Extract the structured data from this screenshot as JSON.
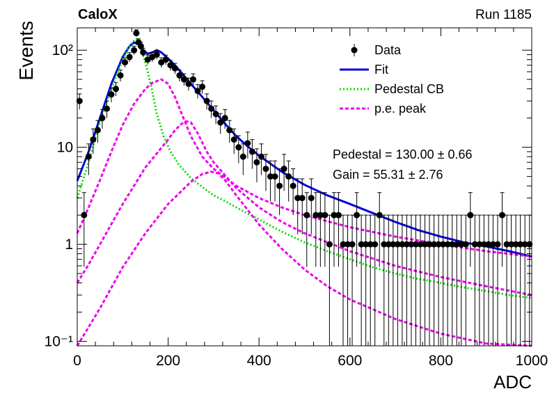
{
  "header": {
    "experiment": "CaloX",
    "run": "Run 1185"
  },
  "fit_results": {
    "pedestal": "Pedestal = 130.00 ± 0.66",
    "gain": "Gain = 55.31 ± 2.76"
  },
  "chart_data": {
    "type": "scatter",
    "title": "",
    "xlabel": "ADC",
    "ylabel": "Events",
    "xlim": [
      0,
      1000
    ],
    "ylim": [
      0.09,
      170
    ],
    "yscale": "log",
    "grid": false,
    "legend_position": "top-right",
    "x_ticks": [
      "0",
      "200",
      "400",
      "600",
      "800",
      "1000"
    ],
    "y_ticks": [
      {
        "value": 0.1,
        "label": "10⁻¹"
      },
      {
        "value": 1,
        "label": "1"
      },
      {
        "value": 10,
        "label": "10"
      },
      {
        "value": 100,
        "label": "10²"
      }
    ],
    "legend": [
      {
        "label": "Data",
        "style": "marker",
        "color": "#000000"
      },
      {
        "label": "Fit",
        "style": "solid",
        "color": "#0000dd"
      },
      {
        "label": "Pedestal CB",
        "style": "dotted",
        "color": "#00dd00"
      },
      {
        "label": "p.e. peak",
        "style": "dashed",
        "color": "#ee00ee"
      }
    ],
    "series": [
      {
        "name": "Data",
        "marker": "circle",
        "color": "#000000",
        "x": [
          5,
          15,
          25,
          35,
          45,
          55,
          65,
          75,
          85,
          95,
          105,
          115,
          125,
          130,
          135,
          140,
          145,
          155,
          165,
          175,
          185,
          195,
          205,
          215,
          225,
          235,
          245,
          255,
          265,
          275,
          285,
          295,
          305,
          315,
          325,
          335,
          345,
          355,
          365,
          375,
          385,
          395,
          405,
          415,
          425,
          435,
          445,
          455,
          465,
          475,
          485,
          495,
          505,
          515,
          525,
          535,
          545,
          555,
          565,
          575,
          585,
          595,
          605,
          615,
          625,
          635,
          645,
          655,
          665,
          675,
          685,
          695,
          705,
          715,
          725,
          735,
          745,
          755,
          765,
          775,
          785,
          795,
          805,
          815,
          825,
          835,
          845,
          855,
          865,
          875,
          885,
          895,
          905,
          915,
          925,
          935,
          945,
          955,
          965,
          975,
          985,
          995
        ],
        "y": [
          30,
          2,
          8,
          12,
          15,
          20,
          25,
          35,
          40,
          55,
          75,
          85,
          100,
          150,
          120,
          110,
          95,
          80,
          85,
          90,
          75,
          80,
          70,
          65,
          55,
          50,
          45,
          50,
          38,
          42,
          30,
          25,
          22,
          18,
          20,
          15,
          12,
          10,
          8,
          11,
          9,
          7,
          8,
          6,
          5,
          5,
          4,
          6,
          5,
          4,
          3,
          3,
          2,
          3,
          2,
          2,
          2,
          1,
          2,
          2,
          1,
          1,
          1,
          2,
          1,
          1,
          1,
          1,
          2,
          1,
          1,
          1,
          1,
          1,
          1,
          1,
          1,
          1,
          1,
          1,
          1,
          1,
          1,
          1,
          1,
          1,
          1,
          1,
          2,
          1,
          1,
          1,
          1,
          1,
          1,
          2,
          1,
          1,
          1,
          1,
          1,
          1
        ]
      },
      {
        "name": "Fit",
        "style": "solid",
        "color": "#0000dd",
        "x": [
          0,
          25,
          50,
          75,
          100,
          115,
          125,
          135,
          145,
          155,
          165,
          175,
          185,
          200,
          215,
          230,
          250,
          275,
          300,
          325,
          350,
          375,
          400,
          450,
          500,
          550,
          600,
          650,
          700,
          750,
          800,
          850,
          900,
          950,
          1000
        ],
        "y": [
          4.5,
          9,
          20,
          45,
          85,
          110,
          120,
          115,
          100,
          92,
          95,
          100,
          95,
          82,
          70,
          58,
          45,
          33,
          24,
          17.5,
          13,
          10.2,
          8.2,
          5.6,
          4.1,
          3.2,
          2.6,
          2.1,
          1.7,
          1.4,
          1.2,
          1.05,
          0.95,
          0.85,
          0.75
        ]
      },
      {
        "name": "Pedestal CB",
        "style": "dotted",
        "color": "#00dd00",
        "x": [
          0,
          25,
          50,
          75,
          100,
          115,
          125,
          130,
          135,
          145,
          155,
          165,
          175,
          190,
          205,
          225,
          250,
          275,
          300,
          325,
          350,
          400,
          450,
          500,
          550,
          600,
          650,
          700,
          750,
          800,
          850,
          900,
          950,
          1000
        ],
        "y": [
          3,
          7,
          18,
          40,
          80,
          110,
          125,
          130,
          120,
          90,
          60,
          38,
          22,
          13,
          9,
          6.5,
          4.8,
          3.9,
          3.2,
          2.8,
          2.4,
          1.8,
          1.35,
          1.05,
          0.85,
          0.7,
          0.58,
          0.5,
          0.44,
          0.4,
          0.36,
          0.33,
          0.3,
          0.28
        ]
      },
      {
        "name": "p.e. peak",
        "style": "dashed",
        "color": "#ee00ee",
        "x": [
          0,
          25,
          50,
          75,
          100,
          125,
          150,
          165,
          185,
          200,
          215,
          230,
          250,
          275,
          300,
          350,
          400,
          450,
          500,
          600,
          700,
          800,
          900,
          1000
        ],
        "y": [
          1.3,
          2.4,
          4.6,
          9,
          17,
          28,
          40,
          46,
          50,
          45,
          33,
          22,
          13,
          8,
          6,
          4,
          3,
          2.4,
          2,
          1.5,
          1.2,
          1,
          0.85,
          0.75
        ]
      },
      {
        "name": "p.e. peak",
        "style": "dashed",
        "color": "#ee00ee",
        "x": [
          0,
          25,
          50,
          100,
          150,
          200,
          215,
          230,
          240,
          250,
          265,
          285,
          300,
          350,
          400,
          450,
          500,
          600,
          700,
          800,
          900,
          1000
        ],
        "y": [
          0.4,
          0.62,
          1,
          2.6,
          6.2,
          12,
          15,
          17.5,
          18.5,
          18,
          14,
          9,
          7,
          3.8,
          2.4,
          1.7,
          1.3,
          0.85,
          0.6,
          0.46,
          0.37,
          0.3
        ]
      },
      {
        "name": "p.e. peak",
        "style": "dashed",
        "color": "#ee00ee",
        "x": [
          0,
          25,
          50,
          100,
          150,
          200,
          250,
          275,
          295,
          310,
          325,
          350,
          400,
          450,
          500,
          550,
          600,
          700,
          800,
          900,
          1000
        ],
        "y": [
          0.09,
          0.14,
          0.22,
          0.58,
          1.3,
          2.6,
          4.4,
          5.3,
          5.6,
          5.4,
          4.6,
          3.2,
          1.6,
          0.9,
          0.55,
          0.37,
          0.27,
          0.17,
          0.12,
          0.095,
          0.09
        ]
      }
    ]
  }
}
